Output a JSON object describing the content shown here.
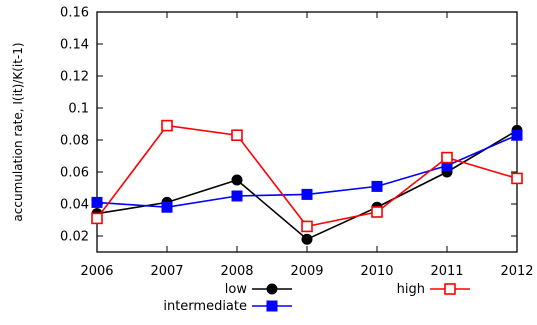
{
  "chart_data": {
    "type": "line",
    "x": [
      2006,
      2007,
      2008,
      2009,
      2010,
      2011,
      2012
    ],
    "xlim": [
      2006,
      2012
    ],
    "ylim": [
      0.01,
      0.16
    ],
    "yticks": [
      0.02,
      0.04,
      0.06,
      0.08,
      0.1,
      0.12,
      0.14,
      0.16
    ],
    "yticklabels": [
      "0.02",
      "0.04",
      "0.06",
      "0.08",
      "0.1",
      "0.12",
      "0.14",
      "0.16"
    ],
    "xticklabels": [
      "2006",
      "2007",
      "2008",
      "2009",
      "2010",
      "2011",
      "2012"
    ],
    "xlabel": "",
    "ylabel": "accumulation rate, I(it)/K(it-1)",
    "title": "",
    "grid": false,
    "legend_position": "bottom",
    "series": [
      {
        "name": "low",
        "color": "#000000",
        "marker": "filled-circle",
        "values": [
          0.034,
          0.041,
          0.055,
          0.018,
          0.038,
          0.06,
          0.086
        ]
      },
      {
        "name": "intermediate",
        "color": "#0000ff",
        "marker": "filled-square",
        "values": [
          0.041,
          0.038,
          0.045,
          0.046,
          0.051,
          0.064,
          0.083
        ]
      },
      {
        "name": "high",
        "color": "#ff0000",
        "marker": "open-square",
        "values": [
          0.031,
          0.089,
          0.083,
          0.026,
          0.035,
          0.069,
          0.056
        ]
      }
    ]
  }
}
